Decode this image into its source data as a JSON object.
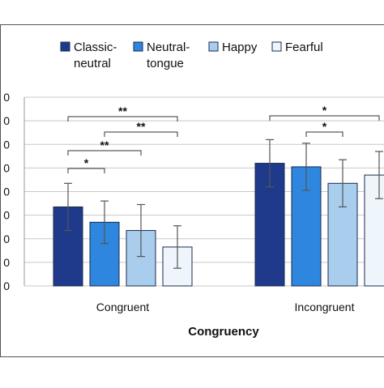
{
  "chart_data": {
    "type": "bar",
    "title": "",
    "xlabel": "Congruency",
    "ylabel": "",
    "categories": [
      "Congruent",
      "Incongruent"
    ],
    "series": [
      {
        "name": "Classic-neutral",
        "values": [
          0.67,
          1.04
        ],
        "errors": [
          0.2,
          0.2
        ],
        "color": "#1f3a8a"
      },
      {
        "name": "Neutral-tongue",
        "values": [
          0.54,
          1.01
        ],
        "errors": [
          0.18,
          0.2
        ],
        "color": "#2e86de"
      },
      {
        "name": "Happy",
        "values": [
          0.47,
          0.87
        ],
        "errors": [
          0.22,
          0.2
        ],
        "color": "#a9cdec"
      },
      {
        "name": "Fearful",
        "values": [
          0.33,
          0.94
        ],
        "errors": [
          0.18,
          0.2
        ],
        "color": "#eef6fb"
      }
    ],
    "legend": {
      "position": "top",
      "labels": [
        "Classic-\nneutral",
        "Neutral-\ntongue",
        "Happy",
        "Fearful"
      ]
    },
    "ytick_labels": [
      "0",
      "0",
      "0",
      "0",
      "0",
      "0",
      "0",
      "0",
      "0"
    ],
    "ylim": [
      0,
      1.6
    ],
    "grid": true,
    "significance": [
      {
        "group": "Congruent",
        "from": "Classic-neutral",
        "to": "Fearful",
        "label": "**"
      },
      {
        "group": "Congruent",
        "from": "Neutral-tongue",
        "to": "Fearful",
        "label": "**"
      },
      {
        "group": "Congruent",
        "from": "Classic-neutral",
        "to": "Happy",
        "label": "**"
      },
      {
        "group": "Congruent",
        "from": "Classic-neutral",
        "to": "Neutral-tongue",
        "label": "*"
      },
      {
        "group": "Incongruent",
        "from": "Classic-neutral",
        "to": "Fearful",
        "label": "*"
      },
      {
        "group": "Incongruent",
        "from": "Neutral-tongue",
        "to": "Happy",
        "label": "*"
      }
    ]
  },
  "colors": {
    "frame": "#555555",
    "grid": "#c8c8c8",
    "bar_stroke": "#1a2a50",
    "error": "#555555",
    "bracket": "#333333"
  }
}
